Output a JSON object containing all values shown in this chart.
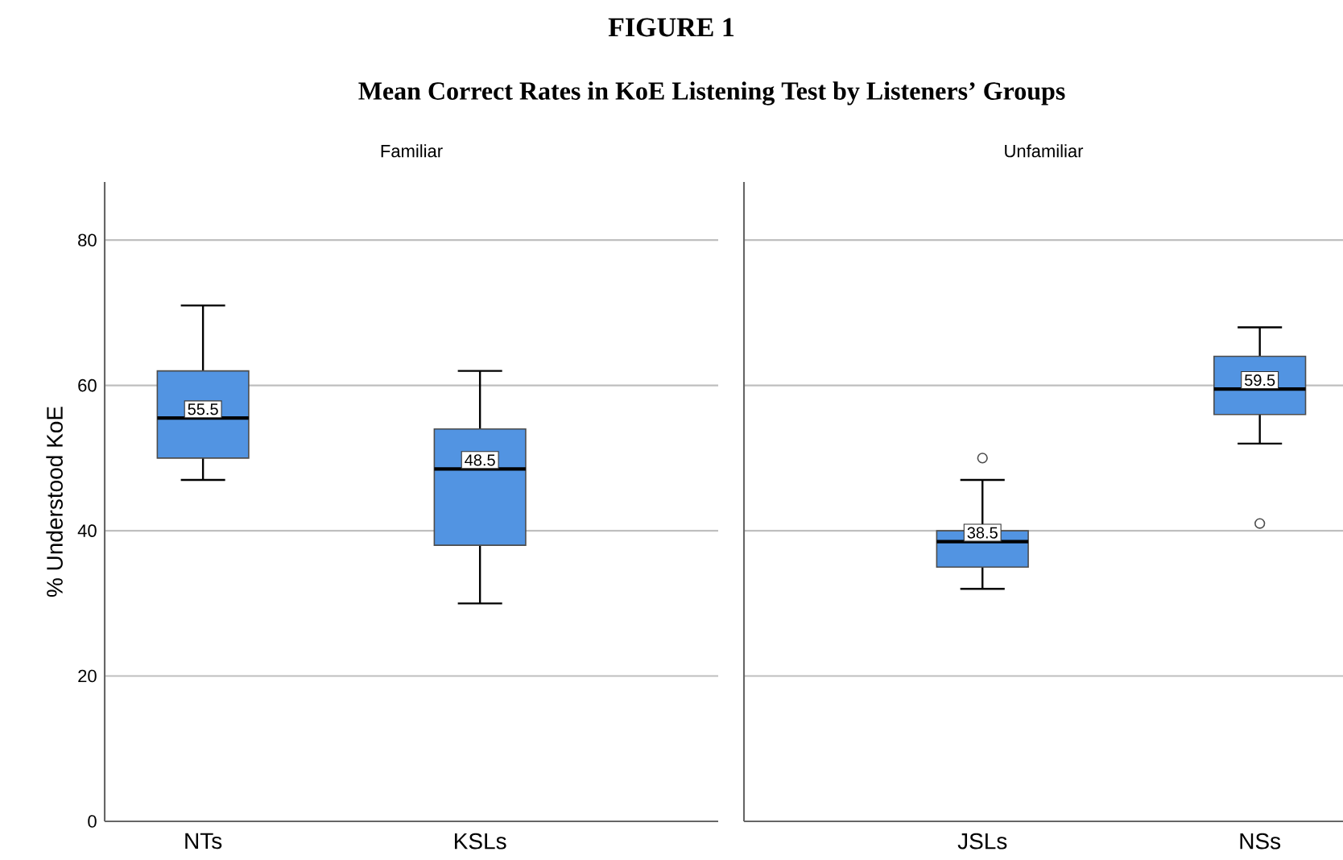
{
  "chart_data": [
    {
      "type": "box",
      "title": "Familiar",
      "ylabel": "% Understood KoE",
      "annotations": [
        "FIGURE 1",
        "Mean Correct Rates in KoE Listening Test by Listeners’ Groups"
      ],
      "categories": [
        "NTs",
        "KSLs"
      ],
      "boxes": [
        {
          "low": 47,
          "q1": 50,
          "median": 55.5,
          "q3": 62,
          "high": 71
        },
        {
          "low": 30,
          "q1": 38,
          "median": 48.5,
          "q3": 54,
          "high": 62
        }
      ],
      "value_labels": [
        "55.5",
        "48.5"
      ],
      "color": "#5294e2",
      "ylim": [
        0,
        88
      ],
      "yticks": [
        0,
        20,
        40,
        60,
        80
      ],
      "grid": "y"
    },
    {
      "type": "box",
      "title": "Unfamiliar",
      "categories": [
        "JSLs",
        "NSs"
      ],
      "boxes": [
        {
          "low": 32,
          "q1": 35,
          "median": 38.5,
          "q3": 40,
          "high": 47,
          "outliers": [
            50
          ]
        },
        {
          "low": 52,
          "q1": 56,
          "median": 59.5,
          "q3": 64,
          "high": 68,
          "outliers": [
            41
          ]
        }
      ],
      "value_labels": [
        "38.5",
        "59.5"
      ],
      "color": "#5294e2",
      "ylim": [
        0,
        88
      ],
      "yticks": [
        0,
        20,
        40,
        60,
        80
      ],
      "grid": "y",
      "tick_labels": "x"
    }
  ]
}
